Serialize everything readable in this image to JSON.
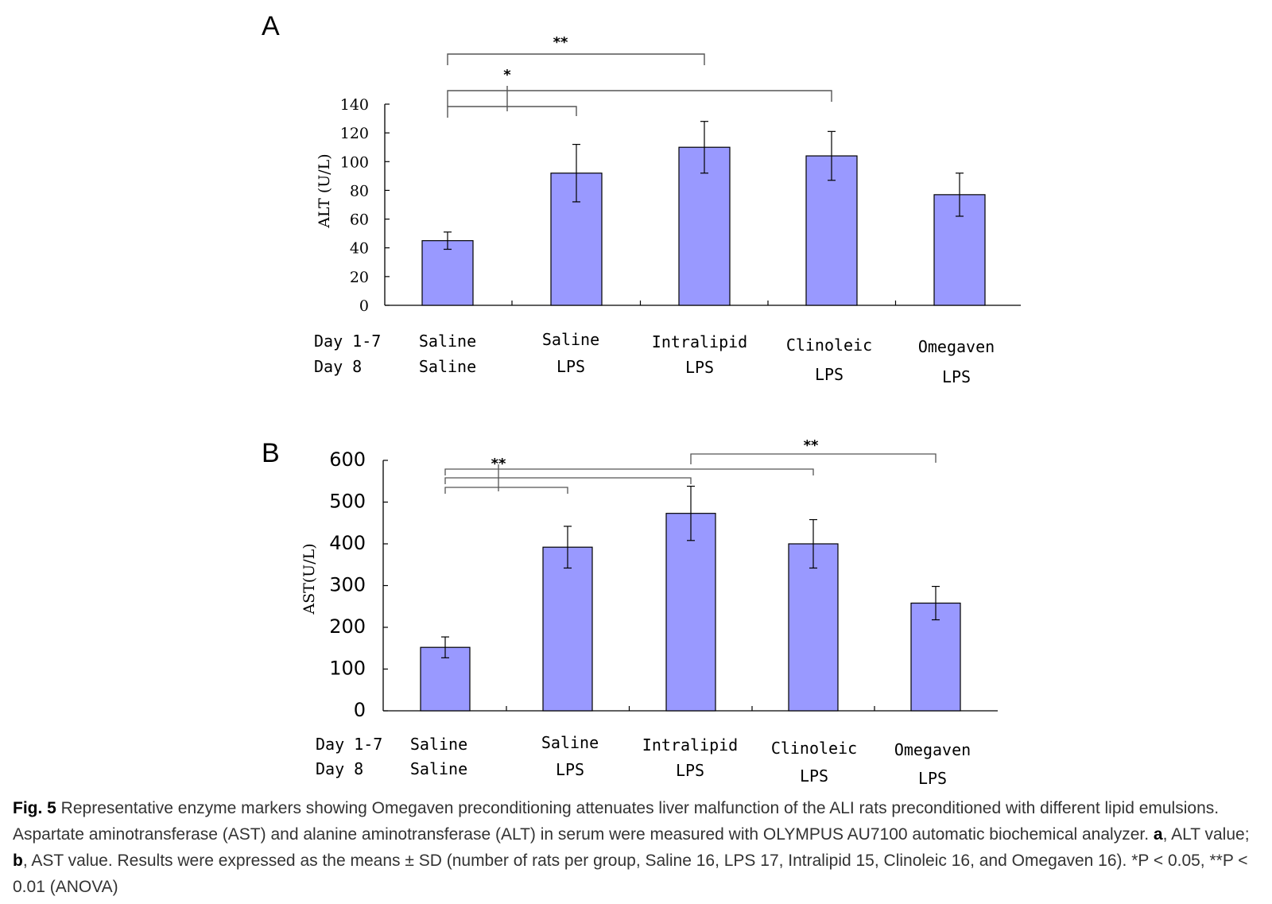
{
  "chart_data": [
    {
      "type": "bar",
      "panel": "A",
      "ylabel": "ALT (U/L)",
      "ylim": [
        0,
        140
      ],
      "yticks": [
        0,
        20,
        40,
        60,
        80,
        100,
        120,
        140
      ],
      "row_labels": [
        "Day 1-7",
        "Day 8"
      ],
      "categories": [
        {
          "day1_7": "Saline",
          "day8": "Saline"
        },
        {
          "day1_7": "Saline",
          "day8": "LPS"
        },
        {
          "day1_7": "Intralipid",
          "day8": "LPS"
        },
        {
          "day1_7": "Clinoleic",
          "day8": "LPS"
        },
        {
          "day1_7": "Omegaven",
          "day8": "LPS"
        }
      ],
      "values": [
        45,
        92,
        110,
        104,
        77
      ],
      "errors": [
        6,
        20,
        18,
        17,
        15
      ],
      "bar_color": "#9999ff",
      "significance": [
        {
          "label": "**",
          "from": 0,
          "to": [
            2
          ]
        },
        {
          "label": "*",
          "from": 0,
          "to": [
            1,
            3
          ]
        }
      ]
    },
    {
      "type": "bar",
      "panel": "B",
      "ylabel": "AST(U/L)",
      "ylim": [
        0,
        600
      ],
      "yticks": [
        0,
        100,
        200,
        300,
        400,
        500,
        600
      ],
      "row_labels": [
        "Day 1-7",
        "Day 8"
      ],
      "categories": [
        {
          "day1_7": "Saline",
          "day8": "Saline"
        },
        {
          "day1_7": "Saline",
          "day8": "LPS"
        },
        {
          "day1_7": "Intralipid",
          "day8": "LPS"
        },
        {
          "day1_7": "Clinoleic",
          "day8": "LPS"
        },
        {
          "day1_7": "Omegaven",
          "day8": "LPS"
        }
      ],
      "values": [
        152,
        392,
        473,
        400,
        258
      ],
      "errors": [
        25,
        50,
        65,
        58,
        40
      ],
      "bar_color": "#9999ff",
      "significance": [
        {
          "label": "**",
          "from": 0,
          "to": [
            1,
            2,
            3
          ]
        },
        {
          "label": "**",
          "from": 2,
          "to": [
            4
          ]
        }
      ]
    }
  ],
  "caption": {
    "fig_label": "Fig. 5",
    "body_1": " Representative enzyme markers showing Omegaven preconditioning attenuates liver malfunction of the ALI rats preconditioned with different lipid emulsions. Aspartate aminotransferase (AST) and alanine aminotransferase (ALT) in serum were measured with OLYMPUS AU7100 automatic biochemical analyzer. ",
    "a": "a",
    "a_text": ", ALT value; ",
    "b": "b",
    "b_text": ", AST value. Results were expressed as the means ± SD (number of rats per group, Saline 16, LPS 17, Intralipid 15, Clinoleic 16, and Omegaven 16). *P < 0.05, **P < 0.01 (ANOVA)"
  }
}
